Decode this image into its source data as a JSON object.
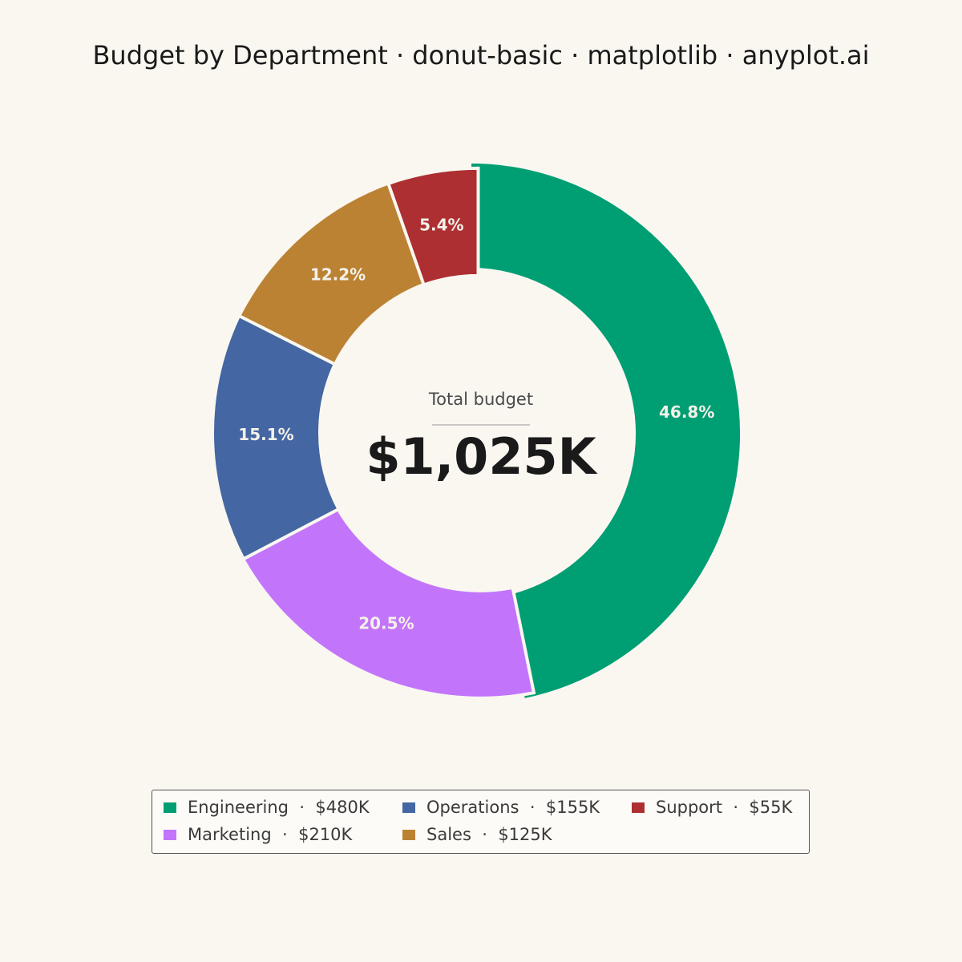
{
  "chart_data": {
    "type": "donut",
    "title": "Budget by Department · donut-basic · matplotlib · anyplot.ai",
    "center_label": "Total budget",
    "center_value": "$1,025K",
    "categories": [
      "Engineering",
      "Marketing",
      "Operations",
      "Sales",
      "Support"
    ],
    "values": [
      480,
      210,
      155,
      125,
      55
    ],
    "unit": "$K",
    "percent_labels": [
      "46.8%",
      "20.5%",
      "15.1%",
      "12.2%",
      "5.4%"
    ],
    "colors": [
      "#009E73",
      "#C275FA",
      "#4466A2",
      "#BC8233",
      "#AD2F31"
    ],
    "start_angle_deg": 90,
    "direction": "clockwise",
    "legend": {
      "placement": "bottom-center",
      "columns": 3,
      "entries": [
        {
          "name": "Engineering",
          "sep": "·",
          "value": "$480K"
        },
        {
          "name": "Marketing",
          "sep": "·",
          "value": "$210K"
        },
        {
          "name": "Operations",
          "sep": "·",
          "value": "$155K"
        },
        {
          "name": "Sales",
          "sep": "·",
          "value": "$125K"
        },
        {
          "name": "Support",
          "sep": "·",
          "value": "$55K"
        }
      ]
    }
  }
}
